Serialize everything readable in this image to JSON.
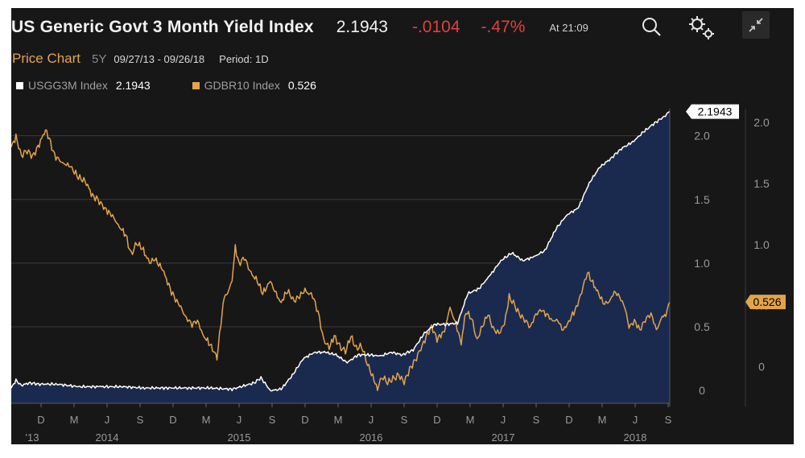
{
  "header": {
    "title": "US Generic Govt 3 Month Yield Index",
    "last_value": "2.1943",
    "change": "-.0104",
    "change_pct": "-.47%",
    "time": "At 21:09",
    "icons": [
      "search-icon",
      "settings-gears-icon",
      "collapse-icon"
    ]
  },
  "subheader": {
    "price_chart_label": "Price Chart",
    "range": "5Y",
    "dates": "09/27/13 - 09/26/18",
    "period": "Period: 1D"
  },
  "legend": [
    {
      "name": "USGG3M Index",
      "value": "2.1943",
      "color": "#ffffff"
    },
    {
      "name": "GDBR10 Index",
      "value": "0.526",
      "color": "#e2a44a"
    }
  ],
  "colors": {
    "background": "#171717",
    "accent_orange": "#e2a44a",
    "negative_red": "#e0403a",
    "area_fill": "#1a2a4f",
    "grid": "#3b3b3b"
  },
  "chart_data": {
    "type": "line",
    "x_ticks": [
      {
        "m": "D",
        "y": "'13"
      },
      {
        "m": "M",
        "y": ""
      },
      {
        "m": "J",
        "y": "2014"
      },
      {
        "m": "S",
        "y": ""
      },
      {
        "m": "D",
        "y": ""
      },
      {
        "m": "M",
        "y": ""
      },
      {
        "m": "J",
        "y": "2015"
      },
      {
        "m": "S",
        "y": ""
      },
      {
        "m": "D",
        "y": ""
      },
      {
        "m": "M",
        "y": ""
      },
      {
        "m": "J",
        "y": "2016"
      },
      {
        "m": "S",
        "y": ""
      },
      {
        "m": "D",
        "y": ""
      },
      {
        "m": "M",
        "y": ""
      },
      {
        "m": "J",
        "y": "2017"
      },
      {
        "m": "S",
        "y": ""
      },
      {
        "m": "D",
        "y": ""
      },
      {
        "m": "M",
        "y": ""
      },
      {
        "m": "J",
        "y": "2018"
      },
      {
        "m": "S",
        "y": ""
      }
    ],
    "y_left": {
      "ticks": [
        "2.0",
        "1.5",
        "1.0",
        "0.5",
        "0"
      ],
      "range": [
        -0.1,
        2.2
      ]
    },
    "y_right": {
      "ticks": [
        "2.0",
        "1.5",
        "1.0",
        "0.5",
        "0"
      ],
      "range": [
        -0.3,
        2.1
      ]
    },
    "last_labels": {
      "left": "2.1943",
      "right": "0.526"
    },
    "series": [
      {
        "name": "USGG3M Index",
        "axis": "left",
        "color": "#ffffff",
        "fill": true,
        "points": [
          [
            "2013-09-27",
            0.02
          ],
          [
            "2013-10-10",
            0.08
          ],
          [
            "2013-10-25",
            0.04
          ],
          [
            "2013-11-15",
            0.06
          ],
          [
            "2013-12-15",
            0.05
          ],
          [
            "2014-02-01",
            0.05
          ],
          [
            "2014-04-01",
            0.03
          ],
          [
            "2014-06-01",
            0.03
          ],
          [
            "2014-08-01",
            0.03
          ],
          [
            "2014-10-01",
            0.02
          ],
          [
            "2014-12-01",
            0.02
          ],
          [
            "2015-02-01",
            0.02
          ],
          [
            "2015-04-01",
            0.02
          ],
          [
            "2015-06-01",
            0.01
          ],
          [
            "2015-08-01",
            0.06
          ],
          [
            "2015-08-20",
            0.1
          ],
          [
            "2015-09-15",
            0.0
          ],
          [
            "2015-10-15",
            0.01
          ],
          [
            "2015-11-15",
            0.12
          ],
          [
            "2015-12-15",
            0.25
          ],
          [
            "2016-01-15",
            0.3
          ],
          [
            "2016-02-15",
            0.3
          ],
          [
            "2016-03-15",
            0.28
          ],
          [
            "2016-04-15",
            0.22
          ],
          [
            "2016-05-15",
            0.28
          ],
          [
            "2016-06-15",
            0.28
          ],
          [
            "2016-07-15",
            0.27
          ],
          [
            "2016-08-15",
            0.3
          ],
          [
            "2016-09-15",
            0.28
          ],
          [
            "2016-10-15",
            0.32
          ],
          [
            "2016-11-15",
            0.45
          ],
          [
            "2016-12-15",
            0.52
          ],
          [
            "2017-01-15",
            0.52
          ],
          [
            "2017-02-15",
            0.53
          ],
          [
            "2017-03-15",
            0.76
          ],
          [
            "2017-04-15",
            0.8
          ],
          [
            "2017-05-15",
            0.9
          ],
          [
            "2017-06-15",
            1.02
          ],
          [
            "2017-07-15",
            1.08
          ],
          [
            "2017-08-15",
            1.02
          ],
          [
            "2017-09-15",
            1.05
          ],
          [
            "2017-10-15",
            1.1
          ],
          [
            "2017-11-15",
            1.27
          ],
          [
            "2017-12-15",
            1.38
          ],
          [
            "2018-01-15",
            1.43
          ],
          [
            "2018-02-15",
            1.63
          ],
          [
            "2018-03-15",
            1.75
          ],
          [
            "2018-04-15",
            1.82
          ],
          [
            "2018-05-15",
            1.9
          ],
          [
            "2018-06-15",
            1.95
          ],
          [
            "2018-07-15",
            2.03
          ],
          [
            "2018-08-15",
            2.1
          ],
          [
            "2018-09-10",
            2.15
          ],
          [
            "2018-09-26",
            2.19
          ]
        ]
      },
      {
        "name": "GDBR10 Index",
        "axis": "right",
        "color": "#e2a44a",
        "fill": false,
        "points": [
          [
            "2013-09-27",
            1.8
          ],
          [
            "2013-10-10",
            1.88
          ],
          [
            "2013-10-25",
            1.73
          ],
          [
            "2013-11-10",
            1.77
          ],
          [
            "2013-11-25",
            1.72
          ],
          [
            "2013-12-10",
            1.8
          ],
          [
            "2013-12-31",
            1.94
          ],
          [
            "2014-01-10",
            1.87
          ],
          [
            "2014-01-25",
            1.73
          ],
          [
            "2014-02-15",
            1.67
          ],
          [
            "2014-03-10",
            1.64
          ],
          [
            "2014-04-01",
            1.55
          ],
          [
            "2014-04-20",
            1.52
          ],
          [
            "2014-05-10",
            1.4
          ],
          [
            "2014-05-25",
            1.37
          ],
          [
            "2014-06-10",
            1.3
          ],
          [
            "2014-07-01",
            1.25
          ],
          [
            "2014-07-20",
            1.16
          ],
          [
            "2014-08-10",
            1.08
          ],
          [
            "2014-08-25",
            0.92
          ],
          [
            "2014-09-10",
            1.01
          ],
          [
            "2014-09-25",
            0.97
          ],
          [
            "2014-10-15",
            0.85
          ],
          [
            "2014-10-30",
            0.88
          ],
          [
            "2014-11-20",
            0.8
          ],
          [
            "2014-12-15",
            0.61
          ],
          [
            "2015-01-10",
            0.48
          ],
          [
            "2015-01-25",
            0.4
          ],
          [
            "2015-02-10",
            0.35
          ],
          [
            "2015-02-25",
            0.37
          ],
          [
            "2015-03-15",
            0.25
          ],
          [
            "2015-04-01",
            0.18
          ],
          [
            "2015-04-15",
            0.1
          ],
          [
            "2015-04-20",
            0.07
          ],
          [
            "2015-05-01",
            0.35
          ],
          [
            "2015-05-10",
            0.58
          ],
          [
            "2015-05-20",
            0.6
          ],
          [
            "2015-06-01",
            0.72
          ],
          [
            "2015-06-10",
            0.98
          ],
          [
            "2015-06-20",
            0.84
          ],
          [
            "2015-07-05",
            0.9
          ],
          [
            "2015-07-20",
            0.78
          ],
          [
            "2015-08-10",
            0.7
          ],
          [
            "2015-08-25",
            0.6
          ],
          [
            "2015-09-15",
            0.7
          ],
          [
            "2015-10-01",
            0.59
          ],
          [
            "2015-10-15",
            0.53
          ],
          [
            "2015-11-01",
            0.62
          ],
          [
            "2015-11-20",
            0.54
          ],
          [
            "2015-12-05",
            0.58
          ],
          [
            "2015-12-20",
            0.62
          ],
          [
            "2016-01-10",
            0.58
          ],
          [
            "2016-01-25",
            0.45
          ],
          [
            "2016-02-10",
            0.22
          ],
          [
            "2016-02-25",
            0.15
          ],
          [
            "2016-03-10",
            0.25
          ],
          [
            "2016-03-25",
            0.17
          ],
          [
            "2016-04-10",
            0.12
          ],
          [
            "2016-04-25",
            0.25
          ],
          [
            "2016-05-10",
            0.15
          ],
          [
            "2016-05-25",
            0.17
          ],
          [
            "2016-06-10",
            0.02
          ],
          [
            "2016-06-25",
            -0.08
          ],
          [
            "2016-07-08",
            -0.18
          ],
          [
            "2016-07-20",
            -0.08
          ],
          [
            "2016-08-05",
            -0.13
          ],
          [
            "2016-08-20",
            -0.1
          ],
          [
            "2016-09-05",
            -0.07
          ],
          [
            "2016-09-20",
            -0.13
          ],
          [
            "2016-10-05",
            -0.02
          ],
          [
            "2016-10-20",
            0.05
          ],
          [
            "2016-11-05",
            0.14
          ],
          [
            "2016-11-20",
            0.25
          ],
          [
            "2016-12-05",
            0.33
          ],
          [
            "2016-12-20",
            0.22
          ],
          [
            "2017-01-10",
            0.3
          ],
          [
            "2017-01-25",
            0.48
          ],
          [
            "2017-02-10",
            0.35
          ],
          [
            "2017-02-25",
            0.2
          ],
          [
            "2017-03-10",
            0.45
          ],
          [
            "2017-03-25",
            0.4
          ],
          [
            "2017-04-10",
            0.22
          ],
          [
            "2017-04-25",
            0.33
          ],
          [
            "2017-05-10",
            0.43
          ],
          [
            "2017-05-25",
            0.31
          ],
          [
            "2017-06-10",
            0.27
          ],
          [
            "2017-06-25",
            0.35
          ],
          [
            "2017-07-08",
            0.57
          ],
          [
            "2017-07-20",
            0.52
          ],
          [
            "2017-08-05",
            0.43
          ],
          [
            "2017-08-20",
            0.38
          ],
          [
            "2017-09-05",
            0.33
          ],
          [
            "2017-09-20",
            0.43
          ],
          [
            "2017-10-05",
            0.46
          ],
          [
            "2017-10-20",
            0.43
          ],
          [
            "2017-11-05",
            0.38
          ],
          [
            "2017-11-20",
            0.37
          ],
          [
            "2017-12-05",
            0.3
          ],
          [
            "2017-12-20",
            0.37
          ],
          [
            "2018-01-10",
            0.48
          ],
          [
            "2018-01-25",
            0.62
          ],
          [
            "2018-02-10",
            0.77
          ],
          [
            "2018-02-25",
            0.68
          ],
          [
            "2018-03-10",
            0.62
          ],
          [
            "2018-03-25",
            0.52
          ],
          [
            "2018-04-10",
            0.52
          ],
          [
            "2018-04-25",
            0.62
          ],
          [
            "2018-05-10",
            0.57
          ],
          [
            "2018-05-25",
            0.48
          ],
          [
            "2018-06-05",
            0.32
          ],
          [
            "2018-06-20",
            0.38
          ],
          [
            "2018-07-05",
            0.3
          ],
          [
            "2018-07-20",
            0.38
          ],
          [
            "2018-08-05",
            0.44
          ],
          [
            "2018-08-20",
            0.3
          ],
          [
            "2018-09-05",
            0.4
          ],
          [
            "2018-09-15",
            0.42
          ],
          [
            "2018-09-26",
            0.53
          ]
        ]
      }
    ]
  }
}
